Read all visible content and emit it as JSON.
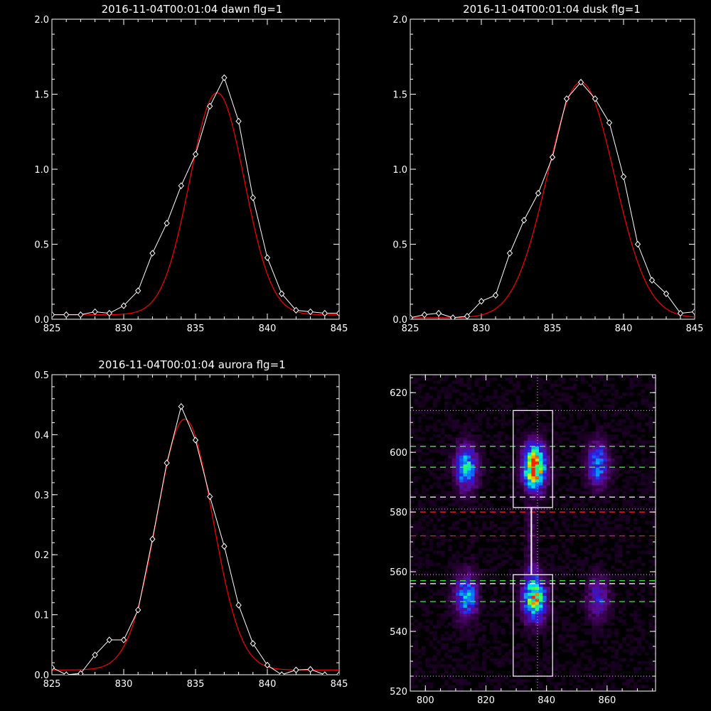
{
  "chart_data": [
    {
      "type": "line",
      "title": "2016-11-04T00:01:04 dawn flg=1",
      "xlim": [
        825,
        845
      ],
      "ylim": [
        0,
        2
      ],
      "xticks": [
        "825",
        "830",
        "835",
        "840",
        "845"
      ],
      "yticks": [
        "0.0",
        "0.5",
        "1.0",
        "1.5",
        "2.0"
      ],
      "series": [
        {
          "kind": "observed",
          "color": "#ffffff",
          "marker": "diamond",
          "x": [
            825,
            826,
            827,
            828,
            829,
            830,
            831,
            832,
            833,
            834,
            835,
            836,
            837,
            838,
            839,
            840,
            841,
            842,
            843,
            844,
            845
          ],
          "y": [
            0.03,
            0.03,
            0.03,
            0.05,
            0.04,
            0.09,
            0.19,
            0.44,
            0.64,
            0.89,
            1.1,
            1.42,
            1.61,
            1.32,
            0.81,
            0.41,
            0.17,
            0.06,
            0.05,
            0.04,
            0.04
          ]
        },
        {
          "kind": "fit",
          "color": "#ff0000",
          "gaussian": {
            "amplitude": 1.48,
            "center": 836.5,
            "sigma": 1.9,
            "offset": 0.03
          }
        }
      ]
    },
    {
      "type": "line",
      "title": "2016-11-04T00:01:04 dusk flg=1",
      "xlim": [
        825,
        845
      ],
      "ylim": [
        0,
        2
      ],
      "xticks": [
        "825",
        "830",
        "835",
        "840",
        "845"
      ],
      "yticks": [
        "0.0",
        "0.5",
        "1.0",
        "1.5",
        "2.0"
      ],
      "series": [
        {
          "kind": "observed",
          "color": "#ffffff",
          "marker": "diamond",
          "x": [
            825,
            826,
            827,
            828,
            829,
            830,
            831,
            832,
            833,
            834,
            835,
            836,
            837,
            838,
            839,
            840,
            841,
            842,
            843,
            844,
            845
          ],
          "y": [
            0.01,
            0.03,
            0.04,
            0.01,
            0.02,
            0.12,
            0.16,
            0.44,
            0.66,
            0.84,
            1.08,
            1.47,
            1.58,
            1.47,
            1.31,
            0.95,
            0.5,
            0.26,
            0.17,
            0.04,
            0.05
          ]
        },
        {
          "kind": "fit",
          "color": "#ff0000",
          "gaussian": {
            "amplitude": 1.57,
            "center": 837.0,
            "sigma": 2.35,
            "offset": 0.01
          }
        }
      ]
    },
    {
      "type": "line",
      "title": "2016-11-04T00:01:04 aurora flg=1",
      "xlim": [
        825,
        845
      ],
      "ylim": [
        0,
        0.5
      ],
      "xticks": [
        "825",
        "830",
        "835",
        "840",
        "845"
      ],
      "yticks": [
        "0.0",
        "0.1",
        "0.2",
        "0.3",
        "0.4",
        "0.5"
      ],
      "series": [
        {
          "kind": "observed",
          "color": "#ffffff",
          "marker": "diamond",
          "x": [
            825,
            826,
            827,
            828,
            829,
            830,
            831,
            832,
            833,
            834,
            835,
            836,
            837,
            838,
            839,
            840,
            841,
            842,
            843,
            844,
            845
          ],
          "y": [
            0.012,
            0.0,
            0.002,
            0.033,
            0.058,
            0.058,
            0.108,
            0.226,
            0.353,
            0.447,
            0.391,
            0.297,
            0.214,
            0.116,
            0.052,
            0.016,
            0.0,
            0.008,
            0.009,
            0.0,
            0.0
          ]
        },
        {
          "kind": "fit",
          "color": "#ff0000",
          "gaussian": {
            "amplitude": 0.418,
            "center": 834.25,
            "sigma": 1.95,
            "offset": 0.008
          }
        }
      ]
    },
    {
      "type": "heatmap",
      "xlim": [
        795,
        876
      ],
      "ylim": [
        520,
        626
      ],
      "xticks": [
        "800",
        "820",
        "840",
        "860"
      ],
      "yticks": [
        "520",
        "540",
        "560",
        "580",
        "600",
        "620"
      ],
      "colormap": [
        "#000000",
        "#2a0038",
        "#5e0a8a",
        "#2a1ae0",
        "#0a7aff",
        "#00e0e0",
        "#30ff60",
        "#e8ff00",
        "#ff2000"
      ],
      "blobs": [
        {
          "x": 813.5,
          "y": 595,
          "peak": 0.55
        },
        {
          "x": 813.5,
          "y": 552,
          "peak": 0.5
        },
        {
          "x": 836,
          "y": 595,
          "peak": 1.0
        },
        {
          "x": 836,
          "y": 551,
          "peak": 0.78
        },
        {
          "x": 857,
          "y": 596,
          "peak": 0.45
        },
        {
          "x": 857,
          "y": 551,
          "peak": 0.32
        }
      ],
      "green_dashed_y": [
        602,
        595,
        557,
        550
      ],
      "white_dashed_y": [
        585,
        556
      ],
      "red_dashed_y": [
        580,
        572
      ],
      "dotted_y": [
        614,
        581,
        559,
        525
      ],
      "dotted_x": [
        837
      ],
      "boxes": [
        {
          "x": [
            829,
            842
          ],
          "y": [
            581.5,
            614
          ]
        },
        {
          "x": [
            829,
            842
          ],
          "y": [
            525,
            559
          ]
        }
      ],
      "vertical_connector_x": 835
    }
  ]
}
